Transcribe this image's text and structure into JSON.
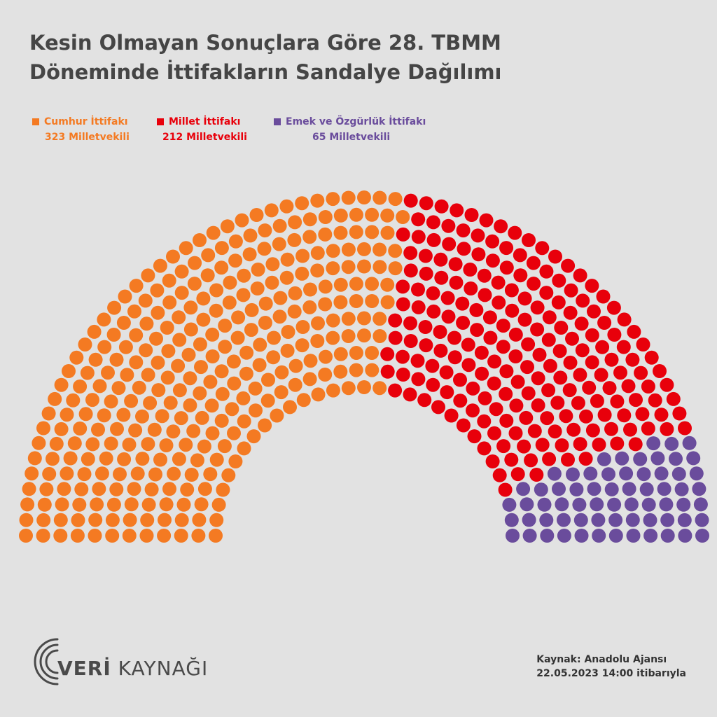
{
  "title_line1": "Kesin Olmayan Sonuçlara Göre 28. TBMM",
  "title_line2": "Döneminde İttifakların Sandalye Dağılımı",
  "chart_data": {
    "type": "parliament",
    "total_seats": 600,
    "series": [
      {
        "name": "Cumhur İttifakı",
        "count_label": "323 Milletvekili",
        "value": 323,
        "color": "#f47a22"
      },
      {
        "name": "Millet İttifakı",
        "count_label": "212 Milletvekili",
        "value": 212,
        "color": "#e8000b"
      },
      {
        "name": "Emek ve Özgürlük İttifakı",
        "count_label": "65 Milletvekili",
        "value": 65,
        "color": "#6a4c9c"
      }
    ]
  },
  "logo": {
    "text_bold": "VERİ",
    "text_rest": " KAYNAĞI"
  },
  "source": {
    "line1": "Kaynak: Anadolu Ajansı",
    "line2": "22.05.2023 14:00 itibarıyla"
  }
}
